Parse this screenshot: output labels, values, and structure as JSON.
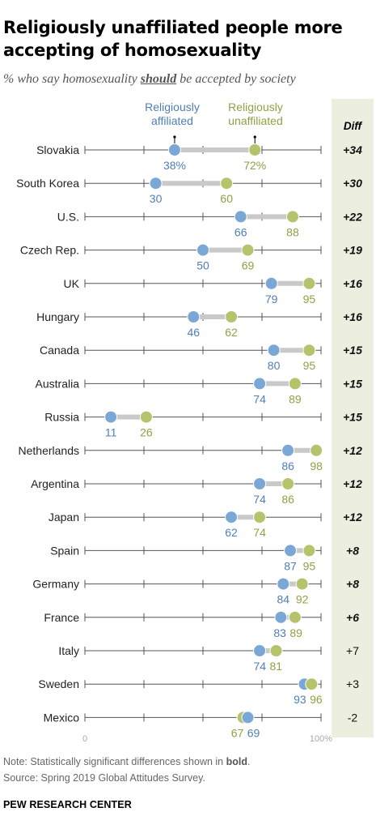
{
  "title": "Religiously unaffiliated people more accepting of homosexuality",
  "subtitle": {
    "before": "% who say homosexuality ",
    "emphasis": "should",
    "after": " be accepted by society"
  },
  "colors": {
    "affiliated": "#7ba7d7",
    "unaffiliated": "#b5c46c",
    "affiliated_text": "#4f7fb5",
    "unaffiliated_text": "#8fa045",
    "diff_panel": "#eceee0"
  },
  "chart_data": {
    "type": "dot-range",
    "title": "Religiously unaffiliated people more accepting of homosexuality",
    "series": [
      {
        "name": "Religiously affiliated",
        "label_lines": [
          "Religiously",
          "affiliated"
        ],
        "color": "#7ba7d7",
        "values": [
          38,
          30,
          66,
          50,
          79,
          46,
          80,
          74,
          11,
          86,
          74,
          62,
          87,
          84,
          83,
          74,
          93,
          69
        ]
      },
      {
        "name": "Religiously unaffiliated",
        "label_lines": [
          "Religiously",
          "unaffiliated"
        ],
        "color": "#b5c46c",
        "values": [
          72,
          60,
          88,
          69,
          95,
          62,
          95,
          89,
          26,
          98,
          86,
          74,
          95,
          92,
          89,
          81,
          96,
          67
        ]
      }
    ],
    "categories": [
      "Slovakia",
      "South Korea",
      "U.S.",
      "Czech Rep.",
      "UK",
      "Hungary",
      "Canada",
      "Australia",
      "Russia",
      "Netherlands",
      "Argentina",
      "Japan",
      "Spain",
      "Germany",
      "France",
      "Italy",
      "Sweden",
      "Mexico"
    ],
    "diff_header": "Diff",
    "diff": [
      "+34",
      "+30",
      "+22",
      "+19",
      "+16",
      "+16",
      "+15",
      "+15",
      "+15",
      "+12",
      "+12",
      "+12",
      "+8",
      "+8",
      "+6",
      "+7",
      "+3",
      "-2"
    ],
    "diff_significant": [
      true,
      true,
      true,
      true,
      true,
      true,
      true,
      true,
      true,
      true,
      true,
      true,
      true,
      true,
      true,
      false,
      false,
      false
    ],
    "first_row_suffix": "%",
    "xlim": [
      0,
      100
    ],
    "x_tick_labels": [
      "0",
      "100%"
    ]
  },
  "footer": {
    "note_before": "Note: Statistically significant differences shown in ",
    "note_bold": "bold",
    "note_after": ".",
    "source": "Source: Spring 2019 Global Attitudes Survey.",
    "org": "PEW RESEARCH CENTER"
  }
}
